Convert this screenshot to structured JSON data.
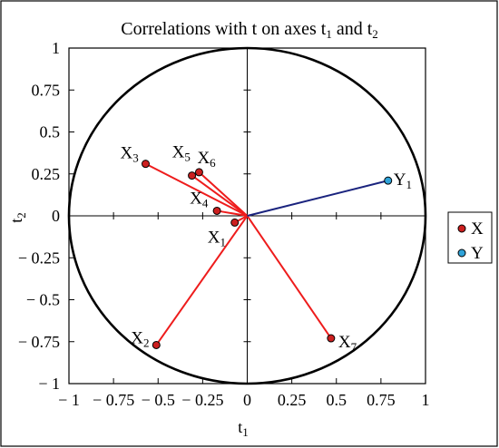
{
  "chart_data": {
    "type": "scatter",
    "title": "Correlations with t on axes t1 and t2",
    "title_parts": {
      "main": "Correlations with t on axes t",
      "sub1": "1",
      "mid": " and t",
      "sub2": "2"
    },
    "xlabel": "t",
    "xlabel_sub": "1",
    "ylabel": "t",
    "ylabel_sub": "2",
    "xlim": [
      -1,
      1
    ],
    "ylim": [
      -1,
      1
    ],
    "x_ticks": [
      -1,
      -0.75,
      -0.5,
      -0.25,
      0,
      0.25,
      0.5,
      0.75,
      1
    ],
    "y_ticks": [
      -1,
      -0.75,
      -0.5,
      -0.25,
      0,
      0.25,
      0.5,
      0.75,
      1
    ],
    "x_tick_labels": [
      "− 1",
      "− 0.75",
      "− 0.5",
      "− 0.25",
      "0",
      "0.25",
      "0.5",
      "0.75",
      "1"
    ],
    "y_tick_labels": [
      "− 1",
      "− 0.75",
      "− 0.5",
      "− 0.25",
      "0",
      "0.25",
      "0.5",
      "0.75",
      "1"
    ],
    "unit_circle": true,
    "grid": false,
    "legend_position": "right",
    "legend": [
      {
        "name": "X",
        "color": "#cc1f1f"
      },
      {
        "name": "Y",
        "color": "#2fa3d9"
      }
    ],
    "series": [
      {
        "name": "X",
        "color": "#cc1f1f",
        "line_color": "#ee1c1c",
        "points": [
          {
            "label": "X",
            "sub": "1",
            "x": -0.07,
            "y": -0.04
          },
          {
            "label": "X",
            "sub": "2",
            "x": -0.51,
            "y": -0.77
          },
          {
            "label": "X",
            "sub": "3",
            "x": -0.57,
            "y": 0.31
          },
          {
            "label": "X",
            "sub": "4",
            "x": -0.17,
            "y": 0.03
          },
          {
            "label": "X",
            "sub": "5",
            "x": -0.31,
            "y": 0.24
          },
          {
            "label": "X",
            "sub": "6",
            "x": -0.27,
            "y": 0.26
          },
          {
            "label": "X",
            "sub": "7",
            "x": 0.47,
            "y": -0.73
          }
        ]
      },
      {
        "name": "Y",
        "color": "#2fa3d9",
        "line_color": "#1a237e",
        "points": [
          {
            "label": "Y",
            "sub": "1",
            "x": 0.79,
            "y": 0.21
          }
        ]
      }
    ]
  }
}
